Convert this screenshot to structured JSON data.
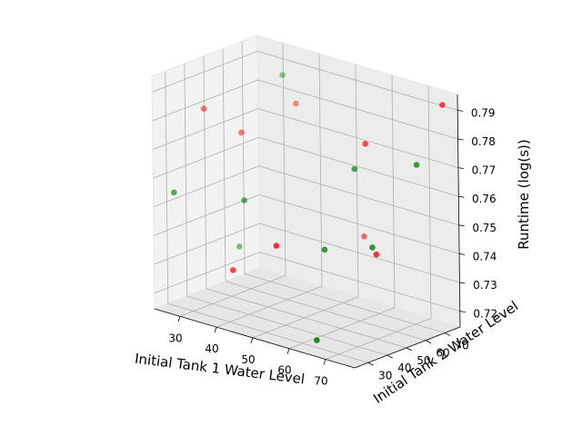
{
  "chart_data": {
    "type": "scatter",
    "projection": "3d",
    "xlabel": "Initial Tank 1 Water Level",
    "ylabel": "Initial Tank 2 Water Level",
    "zlabel": "Runtime (log(s))",
    "xticks": [
      30,
      40,
      50,
      60,
      70
    ],
    "yticks": [
      30,
      40,
      50,
      60,
      70
    ],
    "zticks": [
      0.72,
      0.73,
      0.74,
      0.75,
      0.76,
      0.77,
      0.78,
      0.79
    ],
    "xlim": [
      23,
      78
    ],
    "ylim": [
      23,
      78
    ],
    "zlim": [
      0.7145,
      0.7955
    ],
    "grid": true,
    "colors": {
      "red": "#ff0000",
      "green": "#008000"
    },
    "points": [
      {
        "x": 25,
        "y": 46,
        "z": 0.779,
        "color": "red"
      },
      {
        "x": 25,
        "y": 30,
        "z": 0.754,
        "color": "green"
      },
      {
        "x": 30,
        "y": 56,
        "z": 0.77,
        "color": "red"
      },
      {
        "x": 40,
        "y": 32,
        "z": 0.732,
        "color": "red"
      },
      {
        "x": 38,
        "y": 42,
        "z": 0.753,
        "color": "green"
      },
      {
        "x": 28,
        "y": 58,
        "z": 0.729,
        "color": "green"
      },
      {
        "x": 33,
        "y": 72,
        "z": 0.787,
        "color": "green"
      },
      {
        "x": 35,
        "y": 75,
        "z": 0.777,
        "color": "red"
      },
      {
        "x": 52,
        "y": 32,
        "z": 0.745,
        "color": "red"
      },
      {
        "x": 60,
        "y": 58,
        "z": 0.768,
        "color": "green"
      },
      {
        "x": 62,
        "y": 60,
        "z": 0.777,
        "color": "red"
      },
      {
        "x": 60,
        "y": 42,
        "z": 0.744,
        "color": "green"
      },
      {
        "x": 55,
        "y": 72,
        "z": 0.739,
        "color": "red"
      },
      {
        "x": 65,
        "y": 28,
        "z": 0.718,
        "color": "green"
      },
      {
        "x": 70,
        "y": 48,
        "z": 0.747,
        "color": "green"
      },
      {
        "x": 75,
        "y": 62,
        "z": 0.774,
        "color": "green"
      },
      {
        "x": 77,
        "y": 72,
        "z": 0.793,
        "color": "red"
      },
      {
        "x": 70,
        "y": 50,
        "z": 0.744,
        "color": "red"
      }
    ]
  }
}
